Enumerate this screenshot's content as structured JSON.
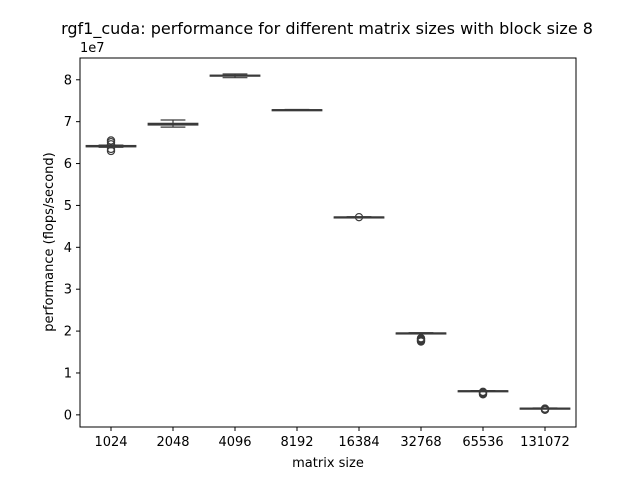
{
  "chart_data": {
    "type": "box",
    "title": "rgf1_cuda: performance for different matrix sizes with block size 8",
    "xlabel": "matrix size",
    "ylabel": "performance (flops/second)",
    "y_offset_label": "1e7",
    "y_scale_factor": 10000000,
    "ylim": [
      -2900000,
      85200000
    ],
    "y_ticks": [
      0,
      10000000,
      20000000,
      30000000,
      40000000,
      50000000,
      60000000,
      70000000,
      80000000
    ],
    "y_tick_labels": [
      "0",
      "1",
      "2",
      "3",
      "4",
      "5",
      "6",
      "7",
      "8"
    ],
    "grid": false,
    "categories": [
      "1024",
      "2048",
      "4096",
      "8192",
      "16384",
      "32768",
      "65536",
      "131072"
    ],
    "box_color": "#3a3a3a",
    "boxes": [
      {
        "category": "1024",
        "whisker_low": 63900000,
        "q1": 64000000,
        "median": 64100000,
        "q3": 64300000,
        "whisker_high": 64400000,
        "outliers": [
          63000000,
          63500000,
          64600000,
          65100000,
          65500000
        ]
      },
      {
        "category": "2048",
        "whisker_low": 68700000,
        "q1": 69200000,
        "median": 69400000,
        "q3": 69600000,
        "whisker_high": 70400000,
        "outliers": []
      },
      {
        "category": "4096",
        "whisker_low": 80500000,
        "q1": 80900000,
        "median": 81000000,
        "q3": 81100000,
        "whisker_high": 81400000,
        "outliers": []
      },
      {
        "category": "8192",
        "whisker_low": 72700000,
        "q1": 72750000,
        "median": 72800000,
        "q3": 72850000,
        "whisker_high": 72900000,
        "outliers": []
      },
      {
        "category": "16384",
        "whisker_low": 47100000,
        "q1": 47150000,
        "median": 47200000,
        "q3": 47250000,
        "whisker_high": 47300000,
        "outliers": [
          47200000
        ]
      },
      {
        "category": "32768",
        "whisker_low": 19400000,
        "q1": 19450000,
        "median": 19500000,
        "q3": 19550000,
        "whisker_high": 19600000,
        "outliers": [
          17500000,
          17700000,
          17900000,
          18100000,
          18300000
        ]
      },
      {
        "category": "65536",
        "whisker_low": 5600000,
        "q1": 5650000,
        "median": 5700000,
        "q3": 5750000,
        "whisker_high": 5800000,
        "outliers": [
          4900000,
          5100000,
          5300000,
          5500000
        ]
      },
      {
        "category": "131072",
        "whisker_low": 1450000,
        "q1": 1500000,
        "median": 1550000,
        "q3": 1600000,
        "whisker_high": 1650000,
        "outliers": [
          1200000,
          1300000,
          1400000,
          1500000
        ]
      }
    ]
  }
}
